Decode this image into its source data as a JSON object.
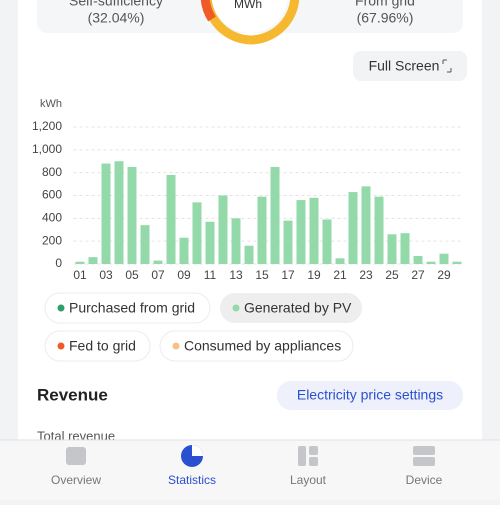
{
  "summary": {
    "left_label": "Self-sufficiency",
    "left_value": "(32.04%)",
    "center_unit": "MWh",
    "right_label": "From grid",
    "right_value": "(67.96%)"
  },
  "full_screen_button": "Full Screen",
  "chart_data": {
    "type": "bar",
    "y_unit": "kWh",
    "categories": [
      "01",
      null,
      "03",
      null,
      "05",
      null,
      "07",
      null,
      "09",
      null,
      "11",
      null,
      "13",
      null,
      "15",
      null,
      "17",
      null,
      "19",
      null,
      "21",
      null,
      "23",
      null,
      "25",
      null,
      "27",
      null,
      "29",
      null
    ],
    "series": [
      {
        "name": "Purchased from grid",
        "color": "#2e9e6a"
      },
      {
        "name": "Generated by PV",
        "color": "#93d9a9",
        "values": [
          20,
          60,
          880,
          900,
          850,
          340,
          30,
          780,
          230,
          540,
          370,
          600,
          400,
          160,
          590,
          850,
          380,
          560,
          580,
          390,
          50,
          630,
          680,
          590,
          260,
          270,
          70,
          20,
          90,
          20
        ]
      },
      {
        "name": "Fed to grid",
        "color": "#f05a28"
      },
      {
        "name": "Consumed by appliances",
        "color": "#f5c08a"
      }
    ],
    "selected_series": "Generated by PV",
    "ylim": [
      0,
      1200
    ],
    "yticks": [
      0,
      200,
      400,
      600,
      800,
      {
        "value": 1000,
        "label": "1,000"
      },
      {
        "value": 1200,
        "label": "1,200"
      }
    ],
    "grid": true
  },
  "revenue": {
    "title": "Revenue",
    "button": "Electricity price settings",
    "total_label": "Total revenue"
  },
  "nav": [
    "Overview",
    "Statistics",
    "Layout",
    "Device"
  ],
  "nav_active": "Statistics"
}
